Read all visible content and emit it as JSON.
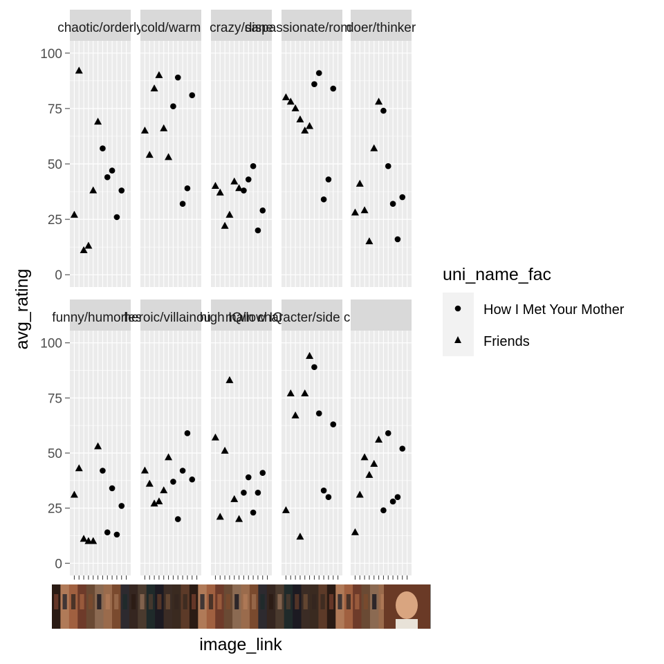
{
  "chart_data": {
    "type": "scatter",
    "xlabel": "image_link",
    "ylabel": "avg_rating",
    "ylim": [
      0,
      100
    ],
    "yticks": [
      0,
      25,
      50,
      75,
      100
    ],
    "x_categories_per_panel": 12,
    "grid": true,
    "background": "#ebebeb",
    "legend": {
      "title": "uni_name_fac",
      "placement": "right",
      "entries": [
        {
          "label": "How I Met Your Mother",
          "shape": "circle"
        },
        {
          "label": "Friends",
          "shape": "triangle"
        }
      ]
    },
    "x_axis_images": "character headshot thumbnails",
    "panels": [
      {
        "strip": "chaotic/orderly",
        "points": [
          [
            1,
            27,
            "Friends"
          ],
          [
            2,
            92,
            "Friends"
          ],
          [
            3,
            11,
            "Friends"
          ],
          [
            4,
            13,
            "Friends"
          ],
          [
            5,
            38,
            "Friends"
          ],
          [
            6,
            69,
            "Friends"
          ],
          [
            7,
            57,
            "How I Met Your Mother"
          ],
          [
            8,
            44,
            "How I Met Your Mother"
          ],
          [
            9,
            47,
            "How I Met Your Mother"
          ],
          [
            10,
            26,
            "How I Met Your Mother"
          ],
          [
            11,
            38,
            "How I Met Your Mother"
          ]
        ]
      },
      {
        "strip": "cold/warm",
        "points": [
          [
            1,
            65,
            "Friends"
          ],
          [
            2,
            54,
            "Friends"
          ],
          [
            3,
            84,
            "Friends"
          ],
          [
            4,
            90,
            "Friends"
          ],
          [
            5,
            66,
            "Friends"
          ],
          [
            6,
            53,
            "Friends"
          ],
          [
            7,
            76,
            "How I Met Your Mother"
          ],
          [
            8,
            89,
            "How I Met Your Mother"
          ],
          [
            9,
            32,
            "How I Met Your Mother"
          ],
          [
            10,
            39,
            "How I Met Your Mother"
          ],
          [
            11,
            81,
            "How I Met Your Mother"
          ]
        ]
      },
      {
        "strip": "crazy/sane",
        "points": [
          [
            1,
            40,
            "Friends"
          ],
          [
            2,
            37,
            "Friends"
          ],
          [
            3,
            22,
            "Friends"
          ],
          [
            4,
            27,
            "Friends"
          ],
          [
            5,
            42,
            "Friends"
          ],
          [
            6,
            39,
            "Friends"
          ],
          [
            7,
            38,
            "How I Met Your Mother"
          ],
          [
            8,
            43,
            "How I Met Your Mother"
          ],
          [
            9,
            49,
            "How I Met Your Mother"
          ],
          [
            10,
            20,
            "How I Met Your Mother"
          ],
          [
            11,
            29,
            "How I Met Your Mother"
          ]
        ]
      },
      {
        "strip": "dispassionate/romantic",
        "points": [
          [
            1,
            80,
            "Friends"
          ],
          [
            2,
            78,
            "Friends"
          ],
          [
            3,
            75,
            "Friends"
          ],
          [
            4,
            70,
            "Friends"
          ],
          [
            5,
            65,
            "Friends"
          ],
          [
            6,
            67,
            "Friends"
          ],
          [
            7,
            86,
            "How I Met Your Mother"
          ],
          [
            8,
            91,
            "How I Met Your Mother"
          ],
          [
            9,
            34,
            "How I Met Your Mother"
          ],
          [
            10,
            43,
            "How I Met Your Mother"
          ],
          [
            11,
            84,
            "How I Met Your Mother"
          ]
        ]
      },
      {
        "strip": "doer/thinker",
        "points": [
          [
            1,
            28,
            "Friends"
          ],
          [
            2,
            41,
            "Friends"
          ],
          [
            3,
            29,
            "Friends"
          ],
          [
            4,
            15,
            "Friends"
          ],
          [
            5,
            57,
            "Friends"
          ],
          [
            6,
            78,
            "Friends"
          ],
          [
            7,
            74,
            "How I Met Your Mother"
          ],
          [
            8,
            49,
            "How I Met Your Mother"
          ],
          [
            9,
            32,
            "How I Met Your Mother"
          ],
          [
            10,
            16,
            "How I Met Your Mother"
          ],
          [
            11,
            35,
            "How I Met Your Mother"
          ]
        ]
      },
      {
        "strip": "funny/humorless",
        "points": [
          [
            1,
            31,
            "Friends"
          ],
          [
            2,
            43,
            "Friends"
          ],
          [
            3,
            11,
            "Friends"
          ],
          [
            4,
            10,
            "Friends"
          ],
          [
            5,
            10,
            "Friends"
          ],
          [
            6,
            53,
            "Friends"
          ],
          [
            7,
            42,
            "How I Met Your Mother"
          ],
          [
            8,
            14,
            "How I Met Your Mother"
          ],
          [
            9,
            34,
            "How I Met Your Mother"
          ],
          [
            10,
            13,
            "How I Met Your Mother"
          ],
          [
            11,
            26,
            "How I Met Your Mother"
          ]
        ]
      },
      {
        "strip": "heroic/villainous",
        "points": [
          [
            1,
            42,
            "Friends"
          ],
          [
            2,
            36,
            "Friends"
          ],
          [
            3,
            27,
            "Friends"
          ],
          [
            4,
            28,
            "Friends"
          ],
          [
            5,
            33,
            "Friends"
          ],
          [
            6,
            48,
            "Friends"
          ],
          [
            7,
            37,
            "How I Met Your Mother"
          ],
          [
            8,
            20,
            "How I Met Your Mother"
          ],
          [
            9,
            42,
            "How I Met Your Mother"
          ],
          [
            10,
            59,
            "How I Met Your Mother"
          ],
          [
            11,
            38,
            "How I Met Your Mother"
          ]
        ]
      },
      {
        "strip": "high IQ/low IQ",
        "points": [
          [
            1,
            57,
            "Friends"
          ],
          [
            2,
            21,
            "Friends"
          ],
          [
            3,
            51,
            "Friends"
          ],
          [
            4,
            83,
            "Friends"
          ],
          [
            5,
            29,
            "Friends"
          ],
          [
            6,
            20,
            "Friends"
          ],
          [
            7,
            32,
            "How I Met Your Mother"
          ],
          [
            8,
            39,
            "How I Met Your Mother"
          ],
          [
            9,
            23,
            "How I Met Your Mother"
          ],
          [
            10,
            32,
            "How I Met Your Mother"
          ],
          [
            11,
            41,
            "How I Met Your Mother"
          ]
        ]
      },
      {
        "strip": "main character/side character",
        "points": [
          [
            1,
            24,
            "Friends"
          ],
          [
            2,
            77,
            "Friends"
          ],
          [
            3,
            67,
            "Friends"
          ],
          [
            4,
            12,
            "Friends"
          ],
          [
            5,
            77,
            "Friends"
          ],
          [
            6,
            94,
            "Friends"
          ],
          [
            7,
            89,
            "How I Met Your Mother"
          ],
          [
            8,
            68,
            "How I Met Your Mother"
          ],
          [
            9,
            33,
            "How I Met Your Mother"
          ],
          [
            10,
            30,
            "How I Met Your Mother"
          ],
          [
            11,
            63,
            "How I Met Your Mother"
          ]
        ]
      },
      {
        "strip": "",
        "points": [
          [
            1,
            14,
            "Friends"
          ],
          [
            2,
            31,
            "Friends"
          ],
          [
            3,
            48,
            "Friends"
          ],
          [
            4,
            40,
            "Friends"
          ],
          [
            5,
            45,
            "Friends"
          ],
          [
            6,
            56,
            "Friends"
          ],
          [
            7,
            24,
            "How I Met Your Mother"
          ],
          [
            8,
            59,
            "How I Met Your Mother"
          ],
          [
            9,
            28,
            "How I Met Your Mother"
          ],
          [
            10,
            30,
            "How I Met Your Mother"
          ],
          [
            11,
            52,
            "How I Met Your Mother"
          ]
        ]
      }
    ]
  }
}
